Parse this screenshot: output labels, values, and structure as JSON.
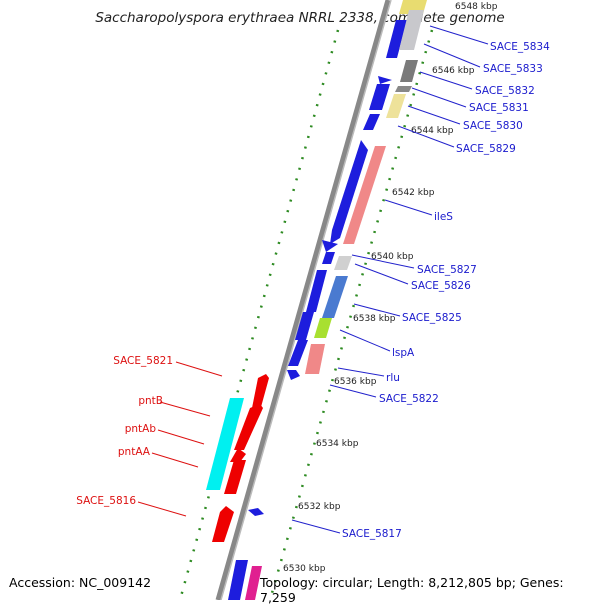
{
  "title": "Saccharopolyspora erythraea NRRL 2338, complete genome",
  "accession": "Accession: NC_009142",
  "topology": "Topology: circular; Length: 8,212,805 bp; Genes: 7,259",
  "colors": {
    "backbone": "#8a8a8a",
    "ticks": "#2e8b22",
    "label_blue": "#1a1acd",
    "label_red": "#dd1111"
  },
  "kbp_ticks": [
    "6548 kbp",
    "6546 kbp",
    "6544 kbp",
    "6542 kbp",
    "6540 kbp",
    "6538 kbp",
    "6536 kbp",
    "6534 kbp",
    "6532 kbp",
    "6530 kbp"
  ],
  "genes_right": [
    "SACE_5834",
    "SACE_5833",
    "SACE_5832",
    "SACE_5831",
    "SACE_5830",
    "SACE_5829",
    "ileS",
    "SACE_5827",
    "SACE_5826",
    "SACE_5825",
    "lspA",
    "rlu",
    "SACE_5822",
    "SACE_5817"
  ],
  "genes_left": [
    "SACE_5821",
    "pntB",
    "pntAb",
    "pntAA",
    "SACE_5816"
  ]
}
